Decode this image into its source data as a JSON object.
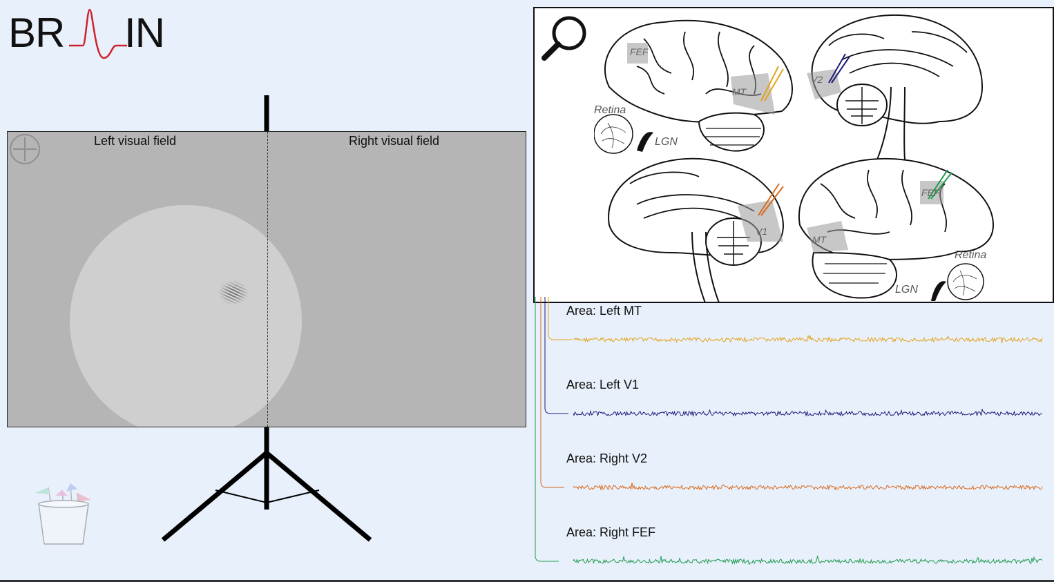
{
  "logo": {
    "text_left": "BR",
    "text_right": "IN",
    "wave_color": "#d0202a"
  },
  "screen": {
    "left_label": "Left visual field",
    "right_label": "Right visual field",
    "background": "#b5b5b5",
    "aperture_color": "#cfcfcf"
  },
  "brain_panel": {
    "labels": {
      "retina_top": "Retina",
      "lgn_top": "LGN",
      "retina_bottom": "Retina",
      "lgn_bottom": "LGN",
      "fef_top": "FEF",
      "mt_top": "MT",
      "v2_top": "V2",
      "v1_bottom": "V1",
      "fef_bottom": "FEF",
      "mt_bottom": "MT"
    }
  },
  "recordings": [
    {
      "label": "Area: Left MT",
      "color": "#e3a21a"
    },
    {
      "label": "Area: Left V1",
      "color": "#1c1a7a"
    },
    {
      "label": "Area: Right V2",
      "color": "#d9691a"
    },
    {
      "label": "Area: Right FEF",
      "color": "#1f9a4e"
    }
  ],
  "icons": [
    "crosshair-icon",
    "magnifier-icon",
    "flags-cup-icon"
  ]
}
